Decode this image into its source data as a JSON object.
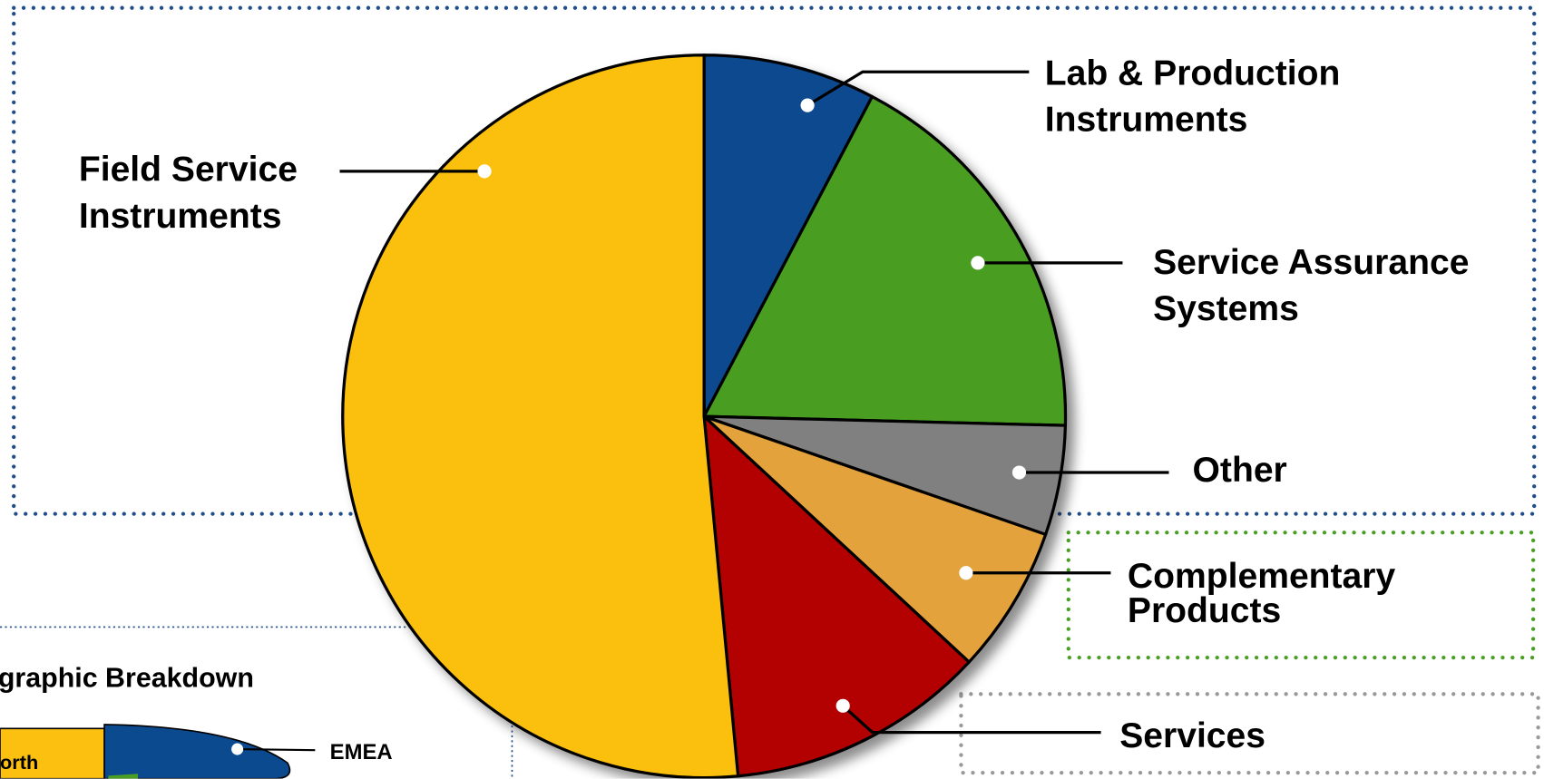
{
  "chart_data": {
    "type": "pie",
    "categories": [
      "Lab & Production Instruments",
      "Service Assurance Systems",
      "Other",
      "Complementary Products",
      "Services",
      "Field Service Instruments"
    ],
    "values": [
      7.7,
      17.7,
      4.9,
      6.6,
      11.6,
      51.5
    ],
    "colors": [
      "#0b4a8f",
      "#4a9e24",
      "#808080",
      "#e3a23a",
      "#b30000",
      "#fbc010"
    ]
  },
  "inset": {
    "title": "graphic Breakdown",
    "labels": [
      "EMEA",
      "orth"
    ]
  }
}
